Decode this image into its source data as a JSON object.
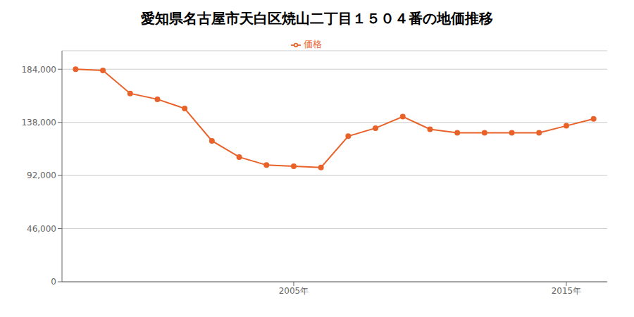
{
  "chart_data": {
    "type": "line",
    "title": "愛知県名古屋市天白区焼山二丁目１５０４番の地価推移",
    "x": [
      1997,
      1998,
      1999,
      2000,
      2001,
      2002,
      2003,
      2004,
      2005,
      2006,
      2007,
      2008,
      2009,
      2010,
      2011,
      2012,
      2013,
      2014,
      2015,
      2016
    ],
    "series": [
      {
        "name": "価格",
        "color": "#e8622a",
        "marker": "circle",
        "values": [
          184000,
          183000,
          163000,
          158000,
          150000,
          122000,
          108000,
          101000,
          100000,
          99000,
          126000,
          133000,
          143000,
          132000,
          129000,
          129000,
          129000,
          129000,
          135000,
          141000
        ]
      }
    ],
    "xlim": [
      1996.5,
      2016.5
    ],
    "xticks": [
      {
        "value": 2005,
        "label": "2005年"
      },
      {
        "value": 2015,
        "label": "2015年"
      }
    ],
    "ylim": [
      0,
      200000
    ],
    "yticks": [
      0,
      {
        "value": 46000,
        "label": "46,000"
      },
      {
        "value": 92000,
        "label": "92,000"
      },
      {
        "value": 138000,
        "label": "138,000"
      },
      {
        "value": 184000,
        "label": "184,000"
      }
    ],
    "grid": true,
    "legend": "top"
  }
}
